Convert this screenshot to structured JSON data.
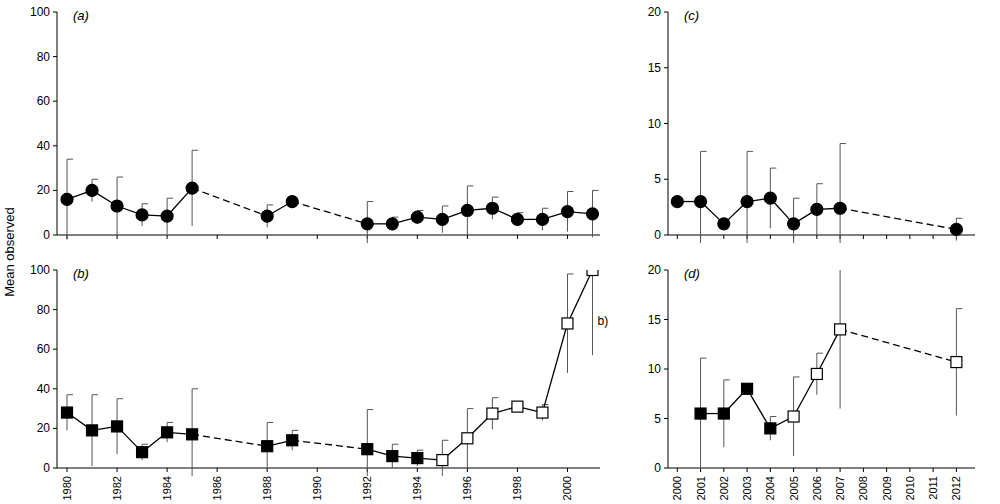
{
  "chart_data": [
    {
      "type": "line",
      "title": "(a)",
      "ylabel": "Mean observed",
      "x": [
        1980,
        1981,
        1982,
        1983,
        1984,
        1985,
        1988,
        1989,
        1992,
        1993,
        1994,
        1995,
        1996,
        1997,
        1998,
        1999,
        2000,
        2001
      ],
      "series": [
        {
          "color": "#000000",
          "marker": "circle",
          "line_style": "solid",
          "values": [
            16,
            20,
            13,
            9,
            8.5,
            21,
            8.5,
            15,
            5,
            5,
            8,
            7,
            11,
            12,
            7,
            7,
            10.5,
            9.5
          ],
          "errors": [
            18,
            5,
            13,
            5,
            8,
            17,
            5,
            0,
            10,
            3,
            3,
            6,
            11,
            5,
            3,
            5,
            9,
            10.5
          ]
        }
      ],
      "xlim": [
        1979.6,
        2001.3
      ],
      "ylim": [
        0,
        100
      ],
      "xticks": [
        1980,
        1982,
        1984,
        1986,
        1988,
        1990,
        1992,
        1994,
        1996,
        1998,
        2000
      ],
      "yticks": [
        0,
        20,
        40,
        60,
        80,
        100
      ],
      "tick_labels": "y"
    },
    {
      "type": "line",
      "title": "(b)",
      "x": [
        1980,
        1981,
        1982,
        1983,
        1984,
        1985,
        1988,
        1989,
        1992,
        1993,
        1994,
        1995,
        1996,
        1997,
        1998,
        1999,
        2000,
        2001
      ],
      "series": [
        {
          "color": "#000000",
          "marker": "square",
          "line_style": "solid",
          "values": [
            28,
            19,
            21,
            8,
            18,
            17,
            11,
            14,
            9.5,
            6,
            5,
            null,
            null,
            null,
            null,
            null,
            null,
            null
          ],
          "errors": [
            9,
            18,
            14,
            4,
            5,
            23,
            12,
            5,
            20,
            6,
            4,
            null,
            null,
            null,
            null,
            null,
            null,
            null
          ]
        },
        {
          "color": "#000000",
          "marker": "open-square",
          "line_style": "solid",
          "values": [
            null,
            null,
            null,
            null,
            null,
            null,
            null,
            null,
            null,
            null,
            null,
            4,
            15,
            27.5,
            31,
            28,
            73,
            100
          ],
          "errors": [
            null,
            null,
            null,
            null,
            null,
            null,
            null,
            null,
            null,
            null,
            null,
            10,
            15,
            8,
            2,
            4,
            25,
            43
          ]
        }
      ],
      "annotations": [
        {
          "text": "b)",
          "x": 2001.2,
          "y": 72
        }
      ],
      "xlim": [
        1979.6,
        2001.3
      ],
      "ylim": [
        0,
        100
      ],
      "xticks": [
        1980,
        1982,
        1984,
        1986,
        1988,
        1990,
        1992,
        1994,
        1996,
        1998,
        2000
      ],
      "yticks": [
        0,
        20,
        40,
        60,
        80,
        100
      ]
    },
    {
      "type": "line",
      "title": "(c)",
      "x": [
        2000,
        2001,
        2002,
        2003,
        2004,
        2005,
        2006,
        2007,
        2012
      ],
      "series": [
        {
          "color": "#000000",
          "marker": "circle",
          "line_style": "solid",
          "values": [
            3,
            3,
            1,
            3,
            3.3,
            1,
            2.3,
            2.4,
            0.5
          ],
          "errors": [
            0,
            4.5,
            0,
            4.5,
            2.7,
            2.3,
            2.3,
            5.8,
            1
          ]
        }
      ],
      "xlim": [
        1999.6,
        2012.8
      ],
      "ylim": [
        0,
        20
      ],
      "xticks": [
        2000,
        2001,
        2002,
        2003,
        2004,
        2005,
        2006,
        2007,
        2008,
        2009,
        2010,
        2011,
        2012
      ],
      "yticks": [
        0,
        5,
        10,
        15,
        20
      ],
      "tick_labels": "y"
    },
    {
      "type": "line",
      "title": "(d)",
      "x": [
        2001,
        2002,
        2003,
        2004,
        2005,
        2006,
        2007,
        2012
      ],
      "series": [
        {
          "color": "#000000",
          "marker": "square",
          "line_style": "solid",
          "values": [
            5.5,
            5.5,
            8,
            4,
            null,
            null,
            null,
            null
          ],
          "errors": [
            5.6,
            3.4,
            0,
            1.2,
            null,
            null,
            null,
            null
          ]
        },
        {
          "color": "#000000",
          "marker": "open-square",
          "line_style": "solid",
          "values": [
            null,
            null,
            null,
            null,
            5.2,
            9.5,
            14,
            10.7
          ],
          "errors": [
            null,
            null,
            null,
            null,
            4,
            2.1,
            8,
            5.4
          ]
        }
      ],
      "xlim": [
        1999.6,
        2012.8
      ],
      "ylim": [
        0,
        20
      ],
      "xticks": [
        2000,
        2001,
        2002,
        2003,
        2004,
        2005,
        2006,
        2007,
        2008,
        2009,
        2010,
        2011,
        2012
      ],
      "yticks": [
        0,
        5,
        10,
        15,
        20
      ]
    }
  ]
}
